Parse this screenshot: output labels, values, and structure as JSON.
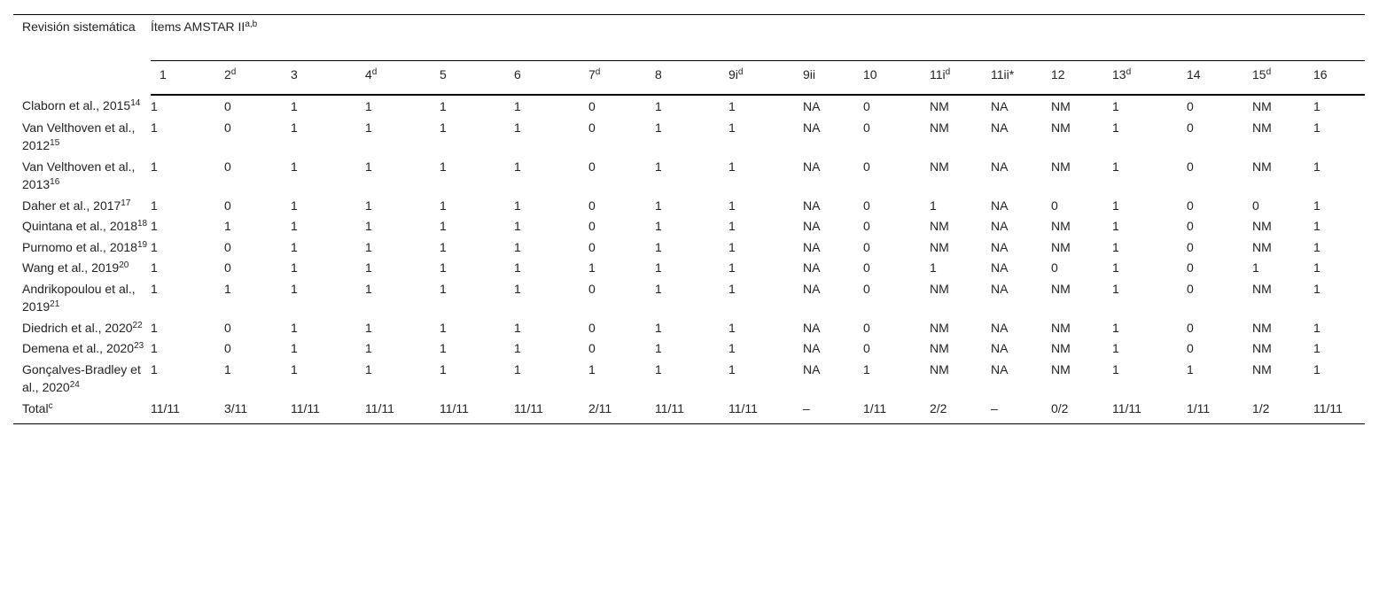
{
  "table": {
    "corner": "Revisión sistemática",
    "group": {
      "text": "Ítems AMSTAR II",
      "sup": "a,b"
    },
    "columns": [
      {
        "text": "1"
      },
      {
        "text": "2",
        "sup": "d"
      },
      {
        "text": "3"
      },
      {
        "text": "4",
        "sup": "d"
      },
      {
        "text": "5"
      },
      {
        "text": "6"
      },
      {
        "text": "7",
        "sup": "d"
      },
      {
        "text": "8"
      },
      {
        "text": "9i",
        "sup": "d"
      },
      {
        "text": "9ii"
      },
      {
        "text": "10"
      },
      {
        "text": "11i",
        "sup": "d"
      },
      {
        "text": "11ii*"
      },
      {
        "text": "12"
      },
      {
        "text": "13",
        "sup": "d"
      },
      {
        "text": "14"
      },
      {
        "text": "15",
        "sup": "d"
      },
      {
        "text": "16"
      }
    ],
    "rows": [
      {
        "name": "Claborn et al., 2015",
        "sup": "14",
        "cells": [
          "1",
          "0",
          "1",
          "1",
          "1",
          "1",
          "0",
          "1",
          "1",
          "NA",
          "0",
          "NM",
          "NA",
          "NM",
          "1",
          "0",
          "NM",
          "1"
        ]
      },
      {
        "name": "Van Velthoven et al., 2012",
        "sup": "15",
        "cells": [
          "1",
          "0",
          "1",
          "1",
          "1",
          "1",
          "0",
          "1",
          "1",
          "NA",
          "0",
          "NM",
          "NA",
          "NM",
          "1",
          "0",
          "NM",
          "1"
        ]
      },
      {
        "name": "Van Velthoven et al., 2013",
        "sup": "16",
        "cells": [
          "1",
          "0",
          "1",
          "1",
          "1",
          "1",
          "0",
          "1",
          "1",
          "NA",
          "0",
          "NM",
          "NA",
          "NM",
          "1",
          "0",
          "NM",
          "1"
        ]
      },
      {
        "name": "Daher et al., 2017",
        "sup": "17",
        "cells": [
          "1",
          "0",
          "1",
          "1",
          "1",
          "1",
          "0",
          "1",
          "1",
          "NA",
          "0",
          "1",
          "NA",
          "0",
          "1",
          "0",
          "0",
          "1"
        ]
      },
      {
        "name": "Quintana et al., 2018",
        "sup": "18",
        "cells": [
          "1",
          "1",
          "1",
          "1",
          "1",
          "1",
          "0",
          "1",
          "1",
          "NA",
          "0",
          "NM",
          "NA",
          "NM",
          "1",
          "0",
          "NM",
          "1"
        ]
      },
      {
        "name": "Purnomo et al., 2018",
        "sup": "19",
        "cells": [
          "1",
          "0",
          "1",
          "1",
          "1",
          "1",
          "0",
          "1",
          "1",
          "NA",
          "0",
          "NM",
          "NA",
          "NM",
          "1",
          "0",
          "NM",
          "1"
        ]
      },
      {
        "name": "Wang et al., 2019",
        "sup": "20",
        "cells": [
          "1",
          "0",
          "1",
          "1",
          "1",
          "1",
          "1",
          "1",
          "1",
          "NA",
          "0",
          "1",
          "NA",
          "0",
          "1",
          "0",
          "1",
          "1"
        ]
      },
      {
        "name": "Andrikopoulou et al., 2019",
        "sup": "21",
        "cells": [
          "1",
          "1",
          "1",
          "1",
          "1",
          "1",
          "0",
          "1",
          "1",
          "NA",
          "0",
          "NM",
          "NA",
          "NM",
          "1",
          "0",
          "NM",
          "1"
        ]
      },
      {
        "name": "Diedrich et al., 2020",
        "sup": "22",
        "cells": [
          "1",
          "0",
          "1",
          "1",
          "1",
          "1",
          "0",
          "1",
          "1",
          "NA",
          "0",
          "NM",
          "NA",
          "NM",
          "1",
          "0",
          "NM",
          "1"
        ]
      },
      {
        "name": "Demena et al., 2020",
        "sup": "23",
        "cells": [
          "1",
          "0",
          "1",
          "1",
          "1",
          "1",
          "0",
          "1",
          "1",
          "NA",
          "0",
          "NM",
          "NA",
          "NM",
          "1",
          "0",
          "NM",
          "1"
        ]
      },
      {
        "name": "Gonçalves-Bradley et al., 2020",
        "sup": "24",
        "cells": [
          "1",
          "1",
          "1",
          "1",
          "1",
          "1",
          "1",
          "1",
          "1",
          "NA",
          "1",
          "NM",
          "NA",
          "NM",
          "1",
          "1",
          "NM",
          "1"
        ]
      }
    ],
    "total": {
      "name": "Total",
      "sup": "c",
      "cells": [
        "11/11",
        "3/11",
        "11/11",
        "11/11",
        "11/11",
        "11/11",
        "2/11",
        "11/11",
        "11/11",
        "–",
        "1/11",
        "2/2",
        "–",
        "0/2",
        "11/11",
        "1/11",
        "1/2",
        "11/11"
      ]
    }
  }
}
